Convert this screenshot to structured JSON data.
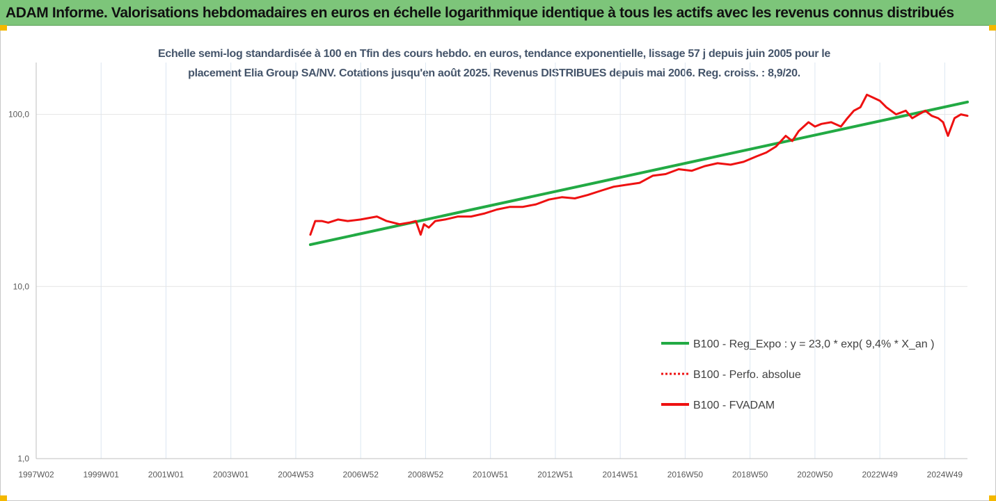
{
  "banner": {
    "title": "ADAM Informe. Valorisations hebdomadaires en euros en échelle logarithmique identique à tous les actifs avec les revenus connus distribués",
    "background": "#7dc57a"
  },
  "chart_data": {
    "type": "line",
    "title_lines": [
      "Echelle semi-log standardisée à 100 en Tfin des cours hebdo. en euros, tendance exponentielle, lissage 57 j depuis juin 2005 pour le",
      "placement Elia Group SA/NV. Cotations jusqu'en août 2025. Revenus DISTRIBUES depuis mai 2006. Reg. croiss. : 8,9/20."
    ],
    "y_scale": "log",
    "ylim": [
      1,
      200
    ],
    "y_ticks": [
      "1,0",
      "10,0",
      "100,0"
    ],
    "y_tick_values": [
      1,
      10,
      100
    ],
    "xlim": [
      1997.0,
      2025.7
    ],
    "x_ticks": [
      "1997W02",
      "1999W01",
      "2001W01",
      "2003W01",
      "2004W53",
      "2006W52",
      "2008W52",
      "2010W51",
      "2012W51",
      "2014W51",
      "2016W50",
      "2018W50",
      "2020W50",
      "2022W49",
      "2024W49"
    ],
    "x_tick_values": [
      1997.0,
      1999.0,
      2001.0,
      2003.0,
      2005.0,
      2007.0,
      2009.0,
      2011.0,
      2013.0,
      2015.0,
      2017.0,
      2019.0,
      2021.0,
      2023.0,
      2025.0
    ],
    "grid": "vertical",
    "legend_position": "bottom-right",
    "series": [
      {
        "name": "B100 - Reg_Expo : y = 23,0 * exp( 9,4% *  X_an )",
        "color": "#22aa44",
        "style": "solid",
        "x": [
          2005.45,
          2025.7
        ],
        "y": [
          17.5,
          118
        ]
      },
      {
        "name": "B100 - Perfo. absolue",
        "color": "#ee1111",
        "style": "dotted",
        "x": [],
        "y": []
      },
      {
        "name": "B100 - FVADAM",
        "color": "#ee1111",
        "style": "solid",
        "x": [
          2005.45,
          2005.6,
          2005.8,
          2006.0,
          2006.3,
          2006.6,
          2007.0,
          2007.5,
          2007.8,
          2008.2,
          2008.5,
          2008.7,
          2008.85,
          2008.95,
          2009.1,
          2009.3,
          2009.6,
          2010.0,
          2010.4,
          2010.8,
          2011.2,
          2011.6,
          2012.0,
          2012.4,
          2012.8,
          2013.2,
          2013.6,
          2014.0,
          2014.4,
          2014.8,
          2015.2,
          2015.6,
          2016.0,
          2016.4,
          2016.8,
          2017.2,
          2017.6,
          2018.0,
          2018.4,
          2018.8,
          2019.2,
          2019.5,
          2019.8,
          2020.1,
          2020.3,
          2020.5,
          2020.8,
          2021.0,
          2021.2,
          2021.5,
          2021.8,
          2022.0,
          2022.2,
          2022.4,
          2022.6,
          2022.8,
          2023.0,
          2023.2,
          2023.5,
          2023.8,
          2024.0,
          2024.2,
          2024.4,
          2024.6,
          2024.8,
          2024.95,
          2025.1,
          2025.3,
          2025.5,
          2025.7
        ],
        "y": [
          20,
          24,
          24,
          23.5,
          24.5,
          24,
          24.5,
          25.5,
          24,
          23,
          23.5,
          24,
          20,
          23,
          22,
          24,
          24.5,
          25.5,
          25.5,
          26.5,
          28,
          29,
          29,
          30,
          32,
          33,
          32.5,
          34,
          36,
          38,
          39,
          40,
          44,
          45,
          48,
          47,
          50,
          52,
          51,
          53,
          57,
          60,
          65,
          75,
          70,
          80,
          90,
          85,
          88,
          90,
          85,
          95,
          105,
          110,
          130,
          125,
          120,
          110,
          100,
          105,
          95,
          100,
          105,
          98,
          95,
          90,
          75,
          95,
          100,
          98
        ]
      }
    ]
  }
}
